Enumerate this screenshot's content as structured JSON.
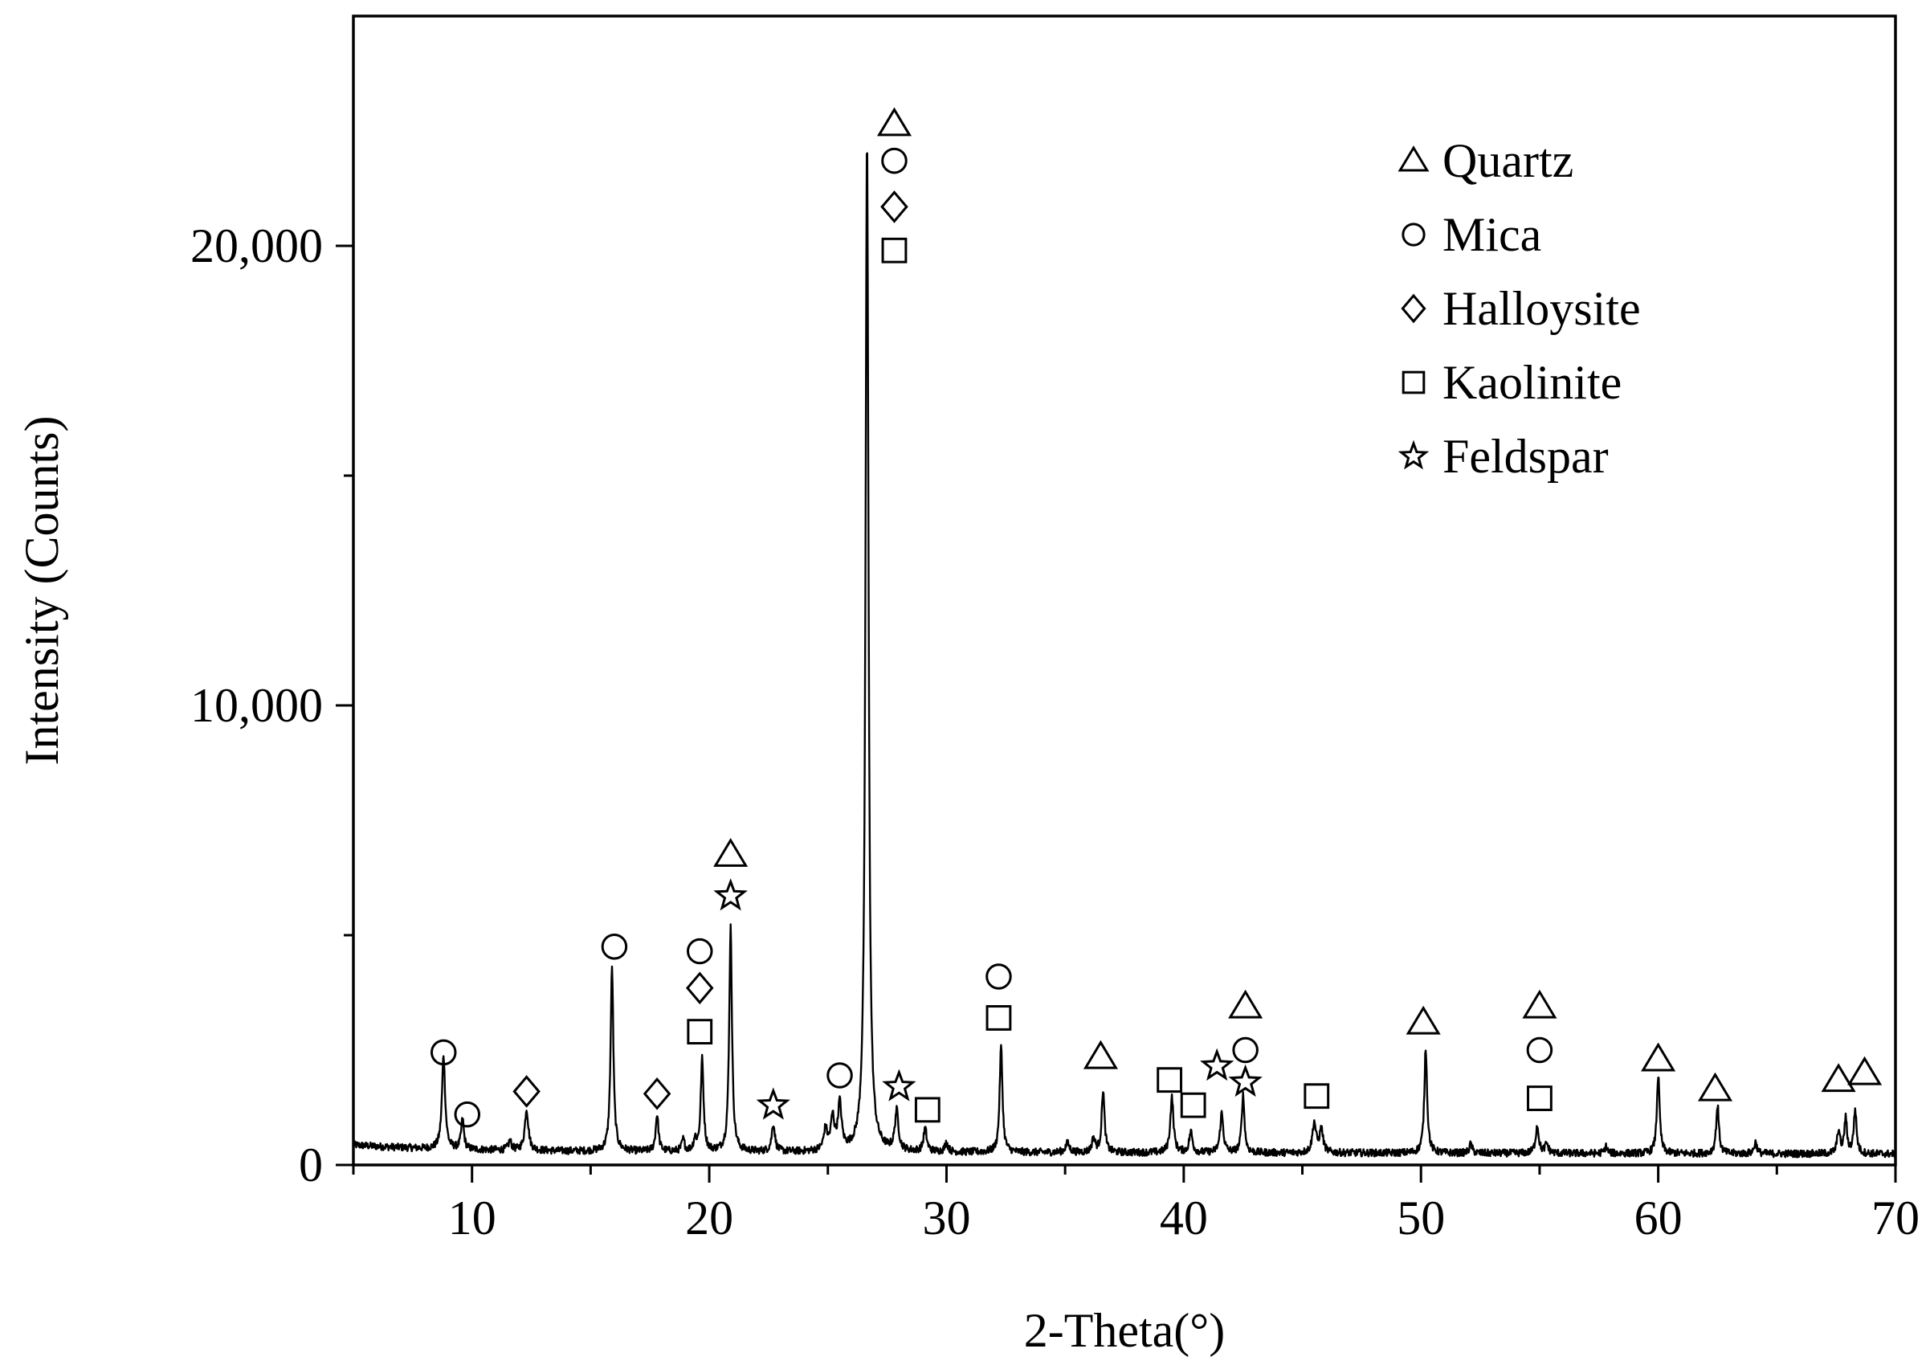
{
  "chart_data": {
    "type": "line",
    "xlabel": "2-Theta(°)",
    "ylabel": "Intensity (Counts)",
    "xlim": [
      5,
      70
    ],
    "ylim": [
      0,
      25000
    ],
    "x_ticks": [
      10,
      20,
      30,
      40,
      50,
      60,
      70
    ],
    "x_tick_labels": [
      "10",
      "20",
      "30",
      "40",
      "50",
      "60",
      "70"
    ],
    "y_ticks": [
      0,
      10000,
      20000
    ],
    "y_tick_labels": [
      "0",
      "10,000",
      "20,000"
    ],
    "grid": false,
    "legend_position": "top-right",
    "background": 300,
    "peaks": [
      {
        "x": 8.8,
        "y": 2050,
        "w": 0.08
      },
      {
        "x": 9.6,
        "y": 650,
        "w": 0.07
      },
      {
        "x": 11.6,
        "y": 200,
        "w": 0.08
      },
      {
        "x": 12.3,
        "y": 900,
        "w": 0.09
      },
      {
        "x": 15.9,
        "y": 4000,
        "w": 0.07
      },
      {
        "x": 17.8,
        "y": 800,
        "w": 0.07
      },
      {
        "x": 18.9,
        "y": 250,
        "w": 0.07
      },
      {
        "x": 19.4,
        "y": 250,
        "w": 0.07
      },
      {
        "x": 19.7,
        "y": 2000,
        "w": 0.07
      },
      {
        "x": 20.9,
        "y": 4900,
        "w": 0.07
      },
      {
        "x": 22.7,
        "y": 600,
        "w": 0.08
      },
      {
        "x": 24.9,
        "y": 450,
        "w": 0.09
      },
      {
        "x": 25.2,
        "y": 700,
        "w": 0.09
      },
      {
        "x": 25.5,
        "y": 1000,
        "w": 0.09
      },
      {
        "x": 26.65,
        "y": 22100,
        "w": 0.075
      },
      {
        "x": 27.9,
        "y": 850,
        "w": 0.09
      },
      {
        "x": 29.1,
        "y": 500,
        "w": 0.08
      },
      {
        "x": 30.0,
        "y": 200,
        "w": 0.08
      },
      {
        "x": 32.3,
        "y": 2300,
        "w": 0.07
      },
      {
        "x": 35.1,
        "y": 200,
        "w": 0.1
      },
      {
        "x": 36.2,
        "y": 300,
        "w": 0.08
      },
      {
        "x": 36.6,
        "y": 1350,
        "w": 0.07
      },
      {
        "x": 39.5,
        "y": 1200,
        "w": 0.08
      },
      {
        "x": 40.3,
        "y": 450,
        "w": 0.08
      },
      {
        "x": 41.6,
        "y": 850,
        "w": 0.08
      },
      {
        "x": 42.5,
        "y": 1250,
        "w": 0.07
      },
      {
        "x": 45.5,
        "y": 650,
        "w": 0.09
      },
      {
        "x": 45.8,
        "y": 500,
        "w": 0.09
      },
      {
        "x": 50.2,
        "y": 2300,
        "w": 0.07
      },
      {
        "x": 52.1,
        "y": 200,
        "w": 0.07
      },
      {
        "x": 54.9,
        "y": 600,
        "w": 0.08
      },
      {
        "x": 55.3,
        "y": 200,
        "w": 0.08
      },
      {
        "x": 57.8,
        "y": 150,
        "w": 0.07
      },
      {
        "x": 60.0,
        "y": 1700,
        "w": 0.07
      },
      {
        "x": 62.5,
        "y": 1050,
        "w": 0.07
      },
      {
        "x": 64.1,
        "y": 250,
        "w": 0.07
      },
      {
        "x": 67.6,
        "y": 500,
        "w": 0.07
      },
      {
        "x": 67.9,
        "y": 750,
        "w": 0.07
      },
      {
        "x": 68.3,
        "y": 950,
        "w": 0.07
      }
    ],
    "series_legend": [
      {
        "marker": "triangle",
        "label": "Quartz"
      },
      {
        "marker": "circle",
        "label": "Mica"
      },
      {
        "marker": "diamond",
        "label": "Halloysite"
      },
      {
        "marker": "square",
        "label": "Kaolinite"
      },
      {
        "marker": "star",
        "label": "Feldspar"
      }
    ],
    "peak_annotations": [
      {
        "x": 8.8,
        "y": 2450,
        "marker": "circle"
      },
      {
        "x": 9.8,
        "y": 1100,
        "marker": "circle"
      },
      {
        "x": 12.3,
        "y": 1600,
        "marker": "diamond"
      },
      {
        "x": 16.0,
        "y": 4750,
        "marker": "circle"
      },
      {
        "x": 17.8,
        "y": 1550,
        "marker": "diamond"
      },
      {
        "x": 19.6,
        "y": 4650,
        "marker": "circle"
      },
      {
        "x": 19.6,
        "y": 3850,
        "marker": "diamond"
      },
      {
        "x": 19.6,
        "y": 2900,
        "marker": "square"
      },
      {
        "x": 20.9,
        "y": 6750,
        "marker": "triangle"
      },
      {
        "x": 20.9,
        "y": 5850,
        "marker": "star"
      },
      {
        "x": 22.7,
        "y": 1300,
        "marker": "star"
      },
      {
        "x": 25.5,
        "y": 1950,
        "marker": "circle"
      },
      {
        "x": 27.8,
        "y": 22650,
        "marker": "triangle"
      },
      {
        "x": 27.8,
        "y": 21850,
        "marker": "circle"
      },
      {
        "x": 27.8,
        "y": 20850,
        "marker": "diamond"
      },
      {
        "x": 27.8,
        "y": 19900,
        "marker": "square"
      },
      {
        "x": 28.0,
        "y": 1700,
        "marker": "star"
      },
      {
        "x": 29.2,
        "y": 1200,
        "marker": "square"
      },
      {
        "x": 32.2,
        "y": 4100,
        "marker": "circle"
      },
      {
        "x": 32.2,
        "y": 3200,
        "marker": "square"
      },
      {
        "x": 36.5,
        "y": 2350,
        "marker": "triangle"
      },
      {
        "x": 39.4,
        "y": 1850,
        "marker": "square"
      },
      {
        "x": 40.4,
        "y": 1300,
        "marker": "square"
      },
      {
        "x": 41.4,
        "y": 2150,
        "marker": "star"
      },
      {
        "x": 42.6,
        "y": 3450,
        "marker": "triangle"
      },
      {
        "x": 42.6,
        "y": 2500,
        "marker": "circle"
      },
      {
        "x": 42.6,
        "y": 1800,
        "marker": "star"
      },
      {
        "x": 45.6,
        "y": 1500,
        "marker": "square"
      },
      {
        "x": 50.1,
        "y": 3100,
        "marker": "triangle"
      },
      {
        "x": 55.0,
        "y": 3450,
        "marker": "triangle"
      },
      {
        "x": 55.0,
        "y": 2500,
        "marker": "circle"
      },
      {
        "x": 55.0,
        "y": 1450,
        "marker": "square"
      },
      {
        "x": 60.0,
        "y": 2300,
        "marker": "triangle"
      },
      {
        "x": 62.4,
        "y": 1650,
        "marker": "triangle"
      },
      {
        "x": 67.6,
        "y": 1850,
        "marker": "triangle"
      },
      {
        "x": 68.7,
        "y": 2000,
        "marker": "triangle"
      }
    ]
  }
}
